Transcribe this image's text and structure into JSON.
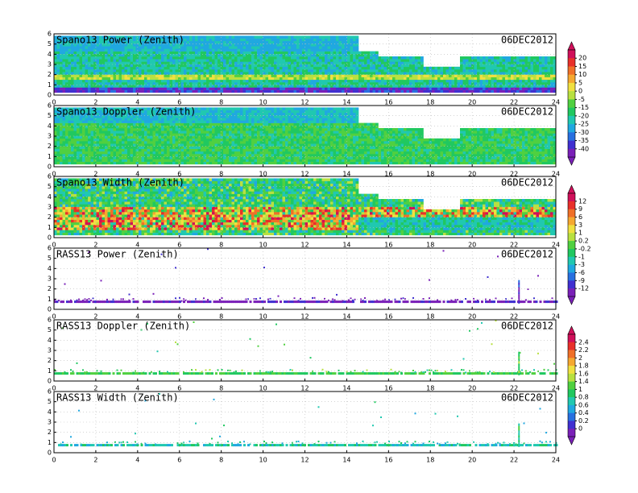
{
  "chart_data": [
    {
      "type": "heatmap",
      "title": "Spano13 Power (Zenith)",
      "date": "06DEC2012",
      "xlim": [
        0,
        24
      ],
      "xticks": [
        0,
        2,
        4,
        6,
        8,
        10,
        12,
        14,
        16,
        18,
        20,
        22,
        24
      ],
      "ylim": [
        0,
        6
      ],
      "yticks": [
        0,
        1,
        2,
        3,
        4,
        5,
        6
      ],
      "colorbar": 0
    },
    {
      "type": "heatmap",
      "title": "Spano13 Doppler (Zenith)",
      "date": "06DEC2012",
      "xlim": [
        0,
        24
      ],
      "xticks": [
        0,
        2,
        4,
        6,
        8,
        10,
        12,
        14,
        16,
        18,
        20,
        22,
        24
      ],
      "ylim": [
        0,
        6
      ],
      "yticks": [
        0,
        1,
        2,
        3,
        4,
        5,
        6
      ],
      "colorbar": 0
    },
    {
      "type": "heatmap",
      "title": "Spano13 Width (Zenith)",
      "date": "06DEC2012",
      "xlim": [
        0,
        24
      ],
      "xticks": [
        0,
        2,
        4,
        6,
        8,
        10,
        12,
        14,
        16,
        18,
        20,
        22,
        24
      ],
      "ylim": [
        0,
        6
      ],
      "yticks": [
        0,
        1,
        2,
        3,
        4,
        5,
        6
      ],
      "colorbar": 1
    },
    {
      "type": "sparse",
      "title": "RASS13 Power (Zenith)",
      "date": "06DEC2012",
      "xlim": [
        0,
        24
      ],
      "xticks": [
        0,
        2,
        4,
        6,
        8,
        10,
        12,
        14,
        16,
        18,
        20,
        22,
        24
      ],
      "ylim": [
        0,
        6
      ],
      "yticks": [
        0,
        1,
        2,
        3,
        4,
        5,
        6
      ],
      "colorbar": 1
    },
    {
      "type": "sparse",
      "title": "RASS13 Doppler (Zenith)",
      "date": "06DEC2012",
      "xlim": [
        0,
        24
      ],
      "xticks": [
        0,
        2,
        4,
        6,
        8,
        10,
        12,
        14,
        16,
        18,
        20,
        22,
        24
      ],
      "ylim": [
        0,
        6
      ],
      "yticks": [
        0,
        1,
        2,
        3,
        4,
        5,
        6
      ],
      "colorbar": 2
    },
    {
      "type": "sparse",
      "title": "RASS13 Width (Zenith)",
      "date": "06DEC2012",
      "xlim": [
        0,
        24
      ],
      "xticks": [
        0,
        2,
        4,
        6,
        8,
        10,
        12,
        14,
        16,
        18,
        20,
        22,
        24
      ],
      "ylim": [
        0,
        6
      ],
      "yticks": [
        0,
        1,
        2,
        3,
        4,
        5,
        6
      ],
      "colorbar": 2
    }
  ],
  "colorbars": [
    {
      "ticks": [
        20,
        15,
        10,
        5,
        0,
        -5,
        -15,
        -20,
        -25,
        -30,
        -35,
        -40
      ],
      "colors": [
        "#d0105a",
        "#e8302a",
        "#f07028",
        "#f5a830",
        "#f0e040",
        "#b8e040",
        "#50d040",
        "#20c860",
        "#20c8b0",
        "#20a8e0",
        "#2870e0",
        "#4030d0",
        "#7a20b8"
      ]
    },
    {
      "ticks": [
        12,
        9,
        6,
        3,
        1,
        0.2,
        -0.2,
        -1,
        -3,
        -6,
        -9,
        -12
      ],
      "colors": [
        "#d0105a",
        "#e8302a",
        "#f07028",
        "#f5a830",
        "#f0e040",
        "#b8e040",
        "#50d040",
        "#20c860",
        "#20c8b0",
        "#20a8e0",
        "#2870e0",
        "#4030d0",
        "#7a20b8"
      ]
    },
    {
      "ticks": [
        2.4,
        2.2,
        2,
        1.8,
        1.6,
        1.4,
        1,
        0.8,
        0.6,
        0.4,
        0.2,
        0
      ],
      "colors": [
        "#d0105a",
        "#e8302a",
        "#f07028",
        "#f5a830",
        "#f0e040",
        "#b8e040",
        "#50d040",
        "#20c860",
        "#20c8b0",
        "#20a8e0",
        "#2870e0",
        "#4030d0",
        "#7a20b8"
      ]
    }
  ]
}
